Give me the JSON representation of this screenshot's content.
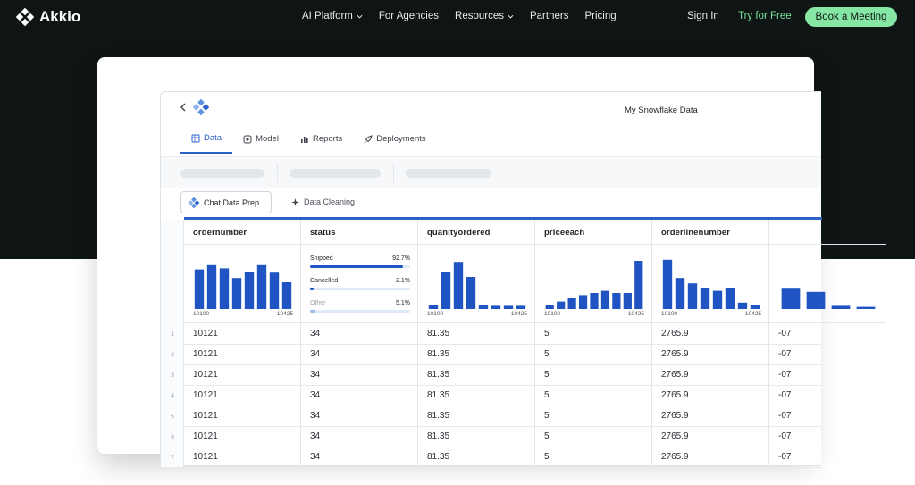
{
  "nav": {
    "brand": "Akkio",
    "links": [
      {
        "label": "AI Platform",
        "dropdown": true
      },
      {
        "label": "For Agencies",
        "dropdown": false
      },
      {
        "label": "Resources",
        "dropdown": true
      },
      {
        "label": "Partners",
        "dropdown": false
      },
      {
        "label": "Pricing",
        "dropdown": false
      }
    ],
    "sign_in": "Sign In",
    "try_free": "Try for Free",
    "book_meeting": "Book a Meeting"
  },
  "colors": {
    "hero_bg": "#0f1514",
    "accent_green": "#86e6a3",
    "link_green": "#74e09a",
    "app_blue": "#2a62c9",
    "bar_blue": "#1f54c2"
  },
  "app": {
    "title": "My Snowflake Data",
    "tabs": [
      {
        "label": "Data",
        "icon": "table-icon",
        "active": true
      },
      {
        "label": "Model",
        "icon": "model-icon",
        "active": false
      },
      {
        "label": "Reports",
        "icon": "bar-chart-icon",
        "active": false
      },
      {
        "label": "Deployments",
        "icon": "rocket-icon",
        "active": false
      }
    ],
    "chat_data_prep": "Chat Data Prep",
    "data_cleaning": "Data Cleaning"
  },
  "grid": {
    "columns": [
      {
        "name": "ordernumber",
        "kind": "hist",
        "min": "10100",
        "max": "10425",
        "bars": [
          0.74,
          0.82,
          0.76,
          0.58,
          0.7,
          0.82,
          0.68,
          0.5
        ]
      },
      {
        "name": "status",
        "kind": "stats",
        "stats": [
          {
            "label": "Shipped",
            "pct": "92.7%",
            "fraction": 0.927,
            "muted": false
          },
          {
            "label": "Cancelled",
            "pct": "2.1%",
            "fraction": 0.021,
            "muted": false
          },
          {
            "label": "Other",
            "pct": "5.1%",
            "fraction": 0.051,
            "muted": true
          }
        ]
      },
      {
        "name": "quanityordered",
        "kind": "hist",
        "min": "10100",
        "max": "10425",
        "bars": [
          0.08,
          0.7,
          0.88,
          0.6,
          0.08,
          0.06,
          0.06,
          0.06
        ]
      },
      {
        "name": "priceeach",
        "kind": "hist",
        "min": "10100",
        "max": "10425",
        "bars": [
          0.08,
          0.14,
          0.2,
          0.26,
          0.3,
          0.34,
          0.3,
          0.3,
          0.9
        ]
      },
      {
        "name": "orderlinenumber",
        "kind": "hist",
        "min": "10100",
        "max": "10425",
        "bars": [
          0.92,
          0.58,
          0.48,
          0.4,
          0.34,
          0.4,
          0.12,
          0.08
        ]
      },
      {
        "name": "",
        "kind": "hist",
        "min": "",
        "max": "",
        "bars": [
          0.38,
          0.32,
          0.06,
          0.04
        ]
      }
    ],
    "rows": [
      {
        "n": "1",
        "cells": [
          "10121",
          "34",
          "81.35",
          "5",
          "2765.9",
          "-07"
        ]
      },
      {
        "n": "2",
        "cells": [
          "10121",
          "34",
          "81.35",
          "5",
          "2765.9",
          "-07"
        ]
      },
      {
        "n": "3",
        "cells": [
          "10121",
          "34",
          "81.35",
          "5",
          "2765.9",
          "-07"
        ]
      },
      {
        "n": "4",
        "cells": [
          "10121",
          "34",
          "81.35",
          "5",
          "2765.9",
          "-07"
        ]
      },
      {
        "n": "5",
        "cells": [
          "10121",
          "34",
          "81.35",
          "5",
          "2765.9",
          "-07"
        ]
      },
      {
        "n": "6",
        "cells": [
          "10121",
          "34",
          "81.35",
          "5",
          "2765.9",
          "-07"
        ]
      },
      {
        "n": "7",
        "cells": [
          "10121",
          "34",
          "81.35",
          "5",
          "2765.9",
          "-07"
        ]
      }
    ]
  }
}
